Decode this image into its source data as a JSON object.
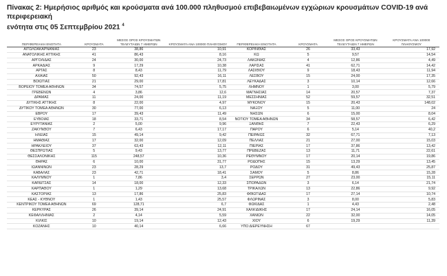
{
  "title": {
    "line1": "Πίνακας 2: Ημερήσιος αριθμός και κρούσματα ανά 100.000 πληθυσμού επιβεβαιωμένων εγχώριων κρουσμάτων COVID-19 ανά περιφερειακή",
    "line2": "ενότητα στις 05 Σεπτεμβρίου 2021",
    "footnote": "4"
  },
  "headers": {
    "unit": "ΠΕΡΙΦΕΡΕΙΑΚΗ ΕΝΟΤΗΤΑ",
    "cases": "ΚΡΟΥΣΜΑΤΑ",
    "avg7": "ΜΕΣΟΣ ΟΡΟΣ ΚΡΟΥΣΜΑΤΩΝ ΤΕΛΕΥΤΑΙΩΝ 7 ΗΜΕΡΩΝ",
    "per100k": "ΚΡΟΥΣΜΑΤΑ ΑΝΑ 100000 ΠΛΗΘΥΣΜΟΥ"
  },
  "left_rows": [
    [
      "ΑΙΤΩΛΟΑΚΑΡΝΑΝΙΑΣ",
      "23",
      "38,86",
      "10,91"
    ],
    [
      "ΑΝΑΤΟΛΙΚΗΣ ΑΤΤΙΚΗΣ",
      "41",
      "86,43",
      "8,16"
    ],
    [
      "ΑΡΓΟΛΙΔΑΣ",
      "24",
      "30,00",
      "24,73"
    ],
    [
      "ΑΡΚΑΔΙΑΣ",
      "9",
      "17,29",
      "10,38"
    ],
    [
      "ΑΡΤΑΣ",
      "8",
      "8,43",
      "11,79"
    ],
    [
      "ΑΧΑΪΑΣ",
      "50",
      "92,43",
      "16,11"
    ],
    [
      "ΒΟΙΩΤΙΑΣ",
      "21",
      "29,00",
      "17,81"
    ],
    [
      "ΒΟΡΕΙΟΥ ΤΟΜΕΑ ΑΘΗΝΩΝ",
      "34",
      "74,57",
      "5,75"
    ],
    [
      "ΓΡΕΒΕΝΩΝ",
      "4",
      "3,86",
      "12,6"
    ],
    [
      "ΔΡΑΜΑΣ",
      "11",
      "24,00",
      "11,19"
    ],
    [
      "ΔΥΤΙΚΗΣ ΑΤΤΙΚΗΣ",
      "8",
      "22,00",
      "4,97"
    ],
    [
      "ΔΥΤΙΚΟΥ ΤΟΜΕΑ ΑΘΗΝΩΝ",
      "30",
      "77,00",
      "6,13"
    ],
    [
      "ΕΒΡΟΥ",
      "17",
      "39,43",
      "11,49"
    ],
    [
      "ΕΥΒΟΙΑΣ",
      "18",
      "33,71",
      "8,54"
    ],
    [
      "ΕΥΡΥΤΑΝΙΑΣ",
      "2",
      "5,00",
      "9,96"
    ],
    [
      "ΖΑΚΥΝΘΟΥ",
      "7",
      "6,43",
      "17,17"
    ],
    [
      "ΗΛΕΙΑΣ",
      "15",
      "49,14",
      "9,42"
    ],
    [
      "ΗΜΑΘΙΑΣ",
      "17",
      "32,00",
      "12,09"
    ],
    [
      "ΗΡΑΚΛΕΙΟΥ",
      "37",
      "63,43",
      "12,11"
    ],
    [
      "ΘΕΣΠΡΩΤΙΑΣ",
      "5",
      "9,43",
      "13,77"
    ],
    [
      "ΘΕΣΣΑΛΟΝΙΚΗΣ",
      "115",
      "248,57",
      "10,36"
    ],
    [
      "ΘΗΡΑΣ",
      "6",
      "10,00",
      "31,77"
    ],
    [
      "ΙΩΑΝΝΙΝΩΝ",
      "23",
      "28,29",
      "13,7"
    ],
    [
      "ΚΑΒΑΛΑΣ",
      "23",
      "42,71",
      "18,41"
    ],
    [
      "ΚΑΛΥΜΝΟΥ",
      "1",
      "7,86",
      "3,4"
    ],
    [
      "ΚΑΡΔΙΤΣΑΣ",
      "14",
      "18,00",
      "12,33"
    ],
    [
      "ΚΑΡΠΑΘΟΥ",
      "1",
      "1,29",
      "13,68"
    ],
    [
      "ΚΑΣΤΟΡΙΑΣ",
      "13",
      "17,86",
      "25,83"
    ],
    [
      "ΚΕΑΣ - ΚΥΘΝΟΥ",
      "1",
      "1,43",
      "25,57"
    ],
    [
      "ΚΕΝΤΡΙΚΟΥ ΤΟΜΕΑ ΑΘΗΝΩΝ",
      "69",
      "128,71",
      "6,7"
    ],
    [
      "ΚΕΡΚΥΡΑΣ",
      "26",
      "39,14",
      "24,91"
    ],
    [
      "ΚΕΦΑΛΛΗΝΙΑΣ",
      "2",
      "4,14",
      "5,59"
    ],
    [
      "ΚΙΛΚΙΣ",
      "10",
      "19,14",
      "12,43"
    ],
    [
      "ΚΟΖΑΝΗΣ",
      "10",
      "40,14",
      "6,66"
    ]
  ],
  "right_rows": [
    [
      "ΚΟΡΙΝΘΙΑΣ",
      "26",
      "33,43",
      "17,92"
    ],
    [
      "ΚΩ",
      "5",
      "9,57",
      "14,54"
    ],
    [
      "ΛΑΚΩΝΙΑΣ",
      "4",
      "12,86",
      "4,49"
    ],
    [
      "ΛΑΡΙΣΑΣ",
      "41",
      "62,71",
      "14,42"
    ],
    [
      "ΛΑΣΙΘΙΟΥ",
      "9",
      "18,43",
      "11,94"
    ],
    [
      "ΛΕΣΒΟΥ",
      "15",
      "24,00",
      "17,35"
    ],
    [
      "ΛΕΥΚΑΔΑΣ",
      "3",
      "10,14",
      "12,66"
    ],
    [
      "ΛΗΜΝΟΥ",
      "1",
      "3,00",
      "5,79"
    ],
    [
      "ΜΑΓΝΗΣΙΑΣ",
      "14",
      "20,57",
      "7,37"
    ],
    [
      "ΜΕΣΣΗΝΙΑΣ",
      "52",
      "59,57",
      "32,51"
    ],
    [
      "ΜΥΚΟΝΟΥ",
      "15",
      "20,43",
      "148,02"
    ],
    [
      "ΝΑΞΟΥ",
      "5",
      "11,00",
      "24"
    ],
    [
      "ΝΗΣΩΝ",
      "6",
      "15,00",
      "8,04"
    ],
    [
      "ΝΟΤΙΟΥ ΤΟΜΕΑ ΑΘΗΝΩΝ",
      "34",
      "58,57",
      "6,42"
    ],
    [
      "ΞΑΝΘΗΣ",
      "7",
      "22,43",
      "6,29"
    ],
    [
      "ΠΑΡΟΥ",
      "6",
      "5,14",
      "40,2"
    ],
    [
      "ΠΕΙΡΑΙΩΣ",
      "32",
      "67,71",
      "7,13"
    ],
    [
      "ΠΕΛΛΑΣ",
      "21",
      "27,00",
      "15,03"
    ],
    [
      "ΠΙΕΡΙΑΣ",
      "17",
      "37,86",
      "13,42"
    ],
    [
      "ΠΡΕΒΕΖΑΣ",
      "13",
      "11,71",
      "22,61"
    ],
    [
      "ΡΕΘΥΜΝΟΥ",
      "17",
      "20,14",
      "19,86"
    ],
    [
      "ΡΟΔΟΠΗΣ",
      "15",
      "13,29",
      "13,45"
    ],
    [
      "ΡΟΔΟΥ",
      "31",
      "49,43",
      "25,87"
    ],
    [
      "ΣΑΜΟΥ",
      "5",
      "8,86",
      "15,28"
    ],
    [
      "ΣΕΡΡΩΝ",
      "27",
      "23,00",
      "15,11"
    ],
    [
      "ΣΠΟΡΑΔΩΝ",
      "3",
      "6,14",
      "21,74"
    ],
    [
      "ΤΡΙΚΑΛΩΝ",
      "13",
      "22,86",
      "9,92"
    ],
    [
      "ΦΘΙΩΤΙΔΑΣ",
      "17",
      "27,14",
      "10,74"
    ],
    [
      "ΦΛΩΡΙΝΑΣ",
      "3",
      "8,00",
      "5,83"
    ],
    [
      "ΦΩΚΙΔΑΣ",
      "1",
      "4,43",
      "2,48"
    ],
    [
      "ΧΑΛΚΙΔΙΚΗΣ",
      "17",
      "24,14",
      "16,05"
    ],
    [
      "ΧΑΝΙΩΝ",
      "22",
      "32,00",
      "14,05"
    ],
    [
      "ΧΙΟΥ",
      "6",
      "19,29",
      "11,39"
    ],
    [
      "ΥΠΟ ΔΙΕΡΕΥΝΗΣΗ",
      "67",
      "",
      ""
    ]
  ]
}
